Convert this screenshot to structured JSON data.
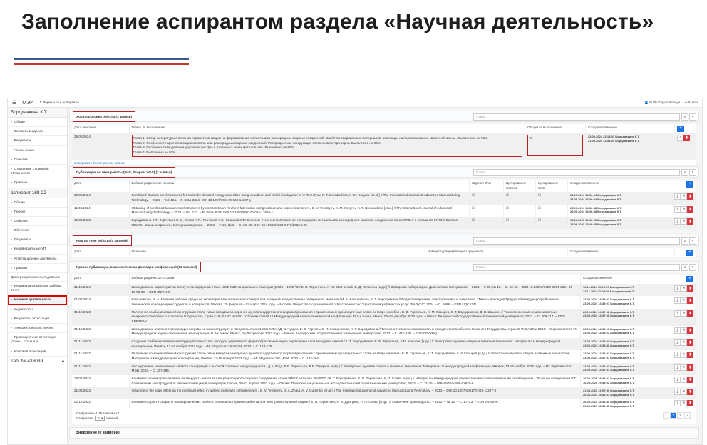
{
  "slide": {
    "title": "Заполнение аспирантом раздела «Научная деятельность»"
  },
  "topbar": {
    "brand": "МЭИ",
    "back": "Вернуться к Аспиранты",
    "user": "PUBLIC\\yasolkovaye",
    "logout": "Выйти"
  },
  "sidebar": {
    "person": "Бородавкина К.Т.",
    "person_items": [
      "Общие",
      "Контакты и адреса",
      "Документы",
      "Члены семьи",
      "События",
      "Отношение к воинской обязанности",
      "Приказы"
    ],
    "group": "аспирант 168-22",
    "group_items": [
      "Общие",
      "Прочие",
      "События",
      "Обучение",
      "Документы",
      "Индивидуальные УП",
      "Аттестационные документы",
      "Приказы"
    ],
    "section_label": "Диссертационное исследование",
    "research_items": [
      "Индивидуальный план работы, отчет",
      "Научная деятельность",
      "Индикаторы",
      "Результаты аттестаций",
      "Текущий контроль (весна)",
      "Промежуточная аттестация (осень), отзыв н.р.",
      "Итоговая аттестация"
    ],
    "tab_select": "Таб. № 436039"
  },
  "search_placeholder": "Поиск...",
  "progress": {
    "title": "Ход подготовки работы (3 записи)",
    "headers": [
      "Дата внесения",
      "Главы, % выполнения",
      "Общий % выполнения",
      "Создано/Изменено"
    ],
    "row": {
      "date": "25.09.2024",
      "chapters": [
        "Глава 1. Обзор литературы о влиянии параметров сварки на формирование металла шва разнородных сварных соединений. Свойства свариваемых материалов, влияющих на перемешивание сварочной ванны.. Выполнено на 95%.",
        "Глава 2. Особенности кристаллизации металла шва разнородных сварных соединений. Распределение легирующих элементов внутри зерна. Выполнено на 90%.",
        "Глава 3. Особенности выделения упрочняющих фаз в различных зонах металла шва. Выполнено на 80%.",
        "Глава 4. Выполнено на 50%."
      ],
      "total": "78",
      "meta": [
        "25.09.2024 23:14:01 Бородавкина К.Т.",
        "21.03.2025 13:33:25 Бородавкина К.Т."
      ]
    },
    "show_earlier": "Отобразить более ранние записи"
  },
  "publications": {
    "title": "Публикации по теме работы (ВАК, Scopus, WoS) (3 записи)",
    "headers": [
      "Дата",
      "Библиографическая ссылка",
      "Журнал ВАК",
      "Цитирование Scopus",
      "Цитирование WoS",
      "Создано/Изменено"
    ],
    "rows": [
      {
        "date": "30.08.2024",
        "ref": "Combined titanium-steel structures formation by directed energy deposition using vanadium and nickel interlayers / E. V. Terentyev, K. T. Borodavkina, K. M. Kozyrev [et al.] // The International Journal of Advanced Manufacturing Technology. – 2024. – Vol. 134. – P. 3311-3324. DOI 10.1007/s00170-024-14307-y",
        "vak": false,
        "scopus": true,
        "wos": false,
        "meta": [
          "23.09.2024 14:36:04 Бородавкина К.Т.",
          "23.09.2024 14:36:04 Бородавкина К.Т."
        ]
      },
      {
        "date": "11.04.2024",
        "ref": "Obtaining of combined titanium-steel structures by electron beam freeform fabrication using niobium and copper interlayers / E. V. Terentyev, K. M. Kozyrev, K. T. Borodavkina [et al.] // The International Journal of Advanced Manufacturing Technology. – 2024. – Vol. 132. – P. 3519-3533. DOI 10.1007/s00170-024-13558-1",
        "vak": false,
        "scopus": true,
        "wos": false,
        "meta": [
          "23.09.2024 14:36:38 Бородавкина К.Т.",
          "23.09.2024 14:36:38 Бородавкина К.Т."
        ]
      },
      {
        "date": "15.06.2023",
        "ref": "Бородавкина К.Т., Терентьев Е.В., Слива А.П., Гончаров А.Л., Козырев Х.М. Влияние степени проплавления на твердость металла шва разнородного сварного соединения стали ЭП817 и сплава 38НХТЮ // Вестник ПНИПУ. Машиностроение, Материаловедение. – 2023. – Т. 25, № 2. – С. 18–25. DOI: 10.15593/2224-9877/2023.2.02",
        "vak": true,
        "scopus": false,
        "wos": false,
        "meta": [
          "15.06.2023 12:40:25 Бородавкина К.Т.",
          "15.06.2023 12:40:25 Бородавкина К.Т."
        ]
      }
    ]
  },
  "rid": {
    "title": "РИД по теме работы (0 записей)",
    "headers": [
      "Дата",
      "Название",
      "Номер подтверждающего документа",
      "Создано/Изменено"
    ]
  },
  "other": {
    "title": "Прочие публикации, включая тезисы докладов конференций (11 записей)",
    "headers": [
      "Дата",
      "Библиографическая ссылка",
      "Создано/Изменено"
    ],
    "rows": [
      {
        "date": "31.10.2024",
        "ref": "Исследование характеристик ползучести корпусной стали 15Х2НМФА в диапазоне температур 500 – 1200 °С / Е. В. Терентьев, А. Ю. Марченков, В. Д. Лопатина [и др.] // Заводская лаборатория. Диагностика материалов. – 2024. – Т. 90, № 10. – С. 56-66. – DOI 10.26896/1028-6861-2024-90-10-56-66. – EDN ZNPKSR.",
        "meta": [
          "12.11.2024 11:29:59 Бородавкина К.Т.",
          "12.11.2024 11:29:59 Бородавкина К.Т."
        ]
      },
      {
        "date": "01.02.2024",
        "ref": "Клюшникова, И. А. Влияние рабочей среды на характеристики оптического спектра при лазерной воздействии на поверхность металла / И. А. Клюшникова, К. Т. Бородавкина // Радиоэлектроника, электротехника и энергетика : Тезисы докладов Тридцатой международной научно-технической конференции студентов и аспирантов, Москва, 29 февраля – 02 марта 2024 года. – Москва: Общество с ограниченной ответственностью \"Центр полиграфических услуг \"РАДУГА\", 2024. – С. 1089. – EDN UQCYSN.",
        "meta": [
          "23.09.2024 14:39:01 Бородавкина К.Т.",
          "23.09.2024 14:39:01 Бородавкина К.Т."
        ]
      },
      {
        "date": "01.12.2023",
        "ref": "Получение комбинированной конструкции сталь-титан методом электронно-лучевого аддитивного формообразования с применением промежуточных слоев из меди и ниобия / Е. В. Терентьев, Х. М. Козырев, К. Т. Бородавкина, Д. В. Шишкин // Технологическая независимость и конкурентоспособность Союзного Государства, стран СНГ, ЕАЭС и ШОС : Сборник статей VI Международной научно-технической конференции. В 3-х томах, Минск, 06–08 декабря 2023 года. – Минск: Белорусский государственный технический университет, 2023. – С. 209-214. – EDN SDRTWW.",
        "meta": [
          "23.09.2024 14:37:08 Бородавкина К.Т.",
          "23.09.2024 14:37:08 Бородавкина К.Т."
        ]
      },
      {
        "date": "01.12.2023",
        "ref": "Исследование влияния температуры нагрева на микроструктуру и твердость стали 15Х2НМФА / Д. В. Чугрин, Е. В. Терентьев, И. Клюшникова, К. Т. Бородавкина // Технологическая независимость и конкурентоспособность Союзного Государства, стран СНГ, ЕАЭС и ШОС : Сборник статей VI Международной научно-технической конференции. В 3-х томах, Минск, 06–08 декабря 2023 года. – Минск: Белорусский государственный технический университет, 2023. – С. 441-445. – EDN CFYYHQ.",
        "meta": [
          "23.09.2024 14:38:22 Бородавкина К.Т.",
          "23.09.2024 14:38:22 Бородавкина К.Т."
        ]
      },
      {
        "date": "01.11.2023",
        "ref": "Создание комбинированных конструкций титан-сталь методом аддитивного формообразования через переходные слои ванадия и никеля / К. Т. Бородавкина, Е. В. Терентьев, Х.М. Козырев [и др.] // Электронно-лучевая сварка и смежные технологии: Материалы V международной конференции, Ижевск, 13-16 ноября 2023 года. – М.: Издательство МЭИ, 2023. – С. 163-176.",
        "meta": [
          "23.09.2024 14:38:48 Бородавкина К.Т.",
          "23.09.2024 14:38:48 Бородавкина К.Т."
        ]
      },
      {
        "date": "01.11.2023",
        "ref": "Получение комбинированной конструкции сталь-титан методом электронно-лучевого аддитивного формообразования с применением промежуточных слоев из меди и ниобия / Е. В. Терентьев, К. Т. Бородавкина, Х.М. Козырев [и др.] // Электронно-лучевая сварка и смежные технологии: Материалы V международной конференции, Ижевск, 13-16 ноября 2023 года. – М.: Издательство МЭИ, 2023. – С. 192-204.",
        "meta": [
          "23.09.2024 14:37:57 Бородавкина К.Т.",
          "23.09.2024 14:37:57 Бородавкина К.Т."
        ]
      },
      {
        "date": "01.11.2023",
        "ref": "Исследование механических свойств конструкций с высокой степенью неоднородности / Д.А. Югут, Е.В. Терентьев, В.В. Пашуков [и др.] // Электронно-лучевая сварка и смежные технологии: Материалы V международной конференции, Ижевск, 13-16 ноября 2023 года. – М.: Издательство МЭИ, 2023. – С. 267-284.",
        "meta": [
          "23.09.2024 14:37:31 Бородавкина К.Т.",
          "23.09.2024 14:37:31 Бородавкина К.Т."
        ]
      },
      {
        "date": "13.06.2023",
        "ref": "Влияние степени проплавления на твердость металла шва разнородного сварного соединения стали ЭП817 и сплава 38НХТЮ / К. Т. Бородавкина, Е. В. Терентьев, А. П. Слива [и др.] // Материалы международной научно-технической конференции, посвященной 135-летию изобретения Н.Г. Славяновым электродуговой сварки плавящимся электродом, Пермь, 20-21 апреля 2023 года. – Пермь: Пермский национальный исследовательский политехнический университет, 2023. – С. 31-35. – ISBN 978-5-398-02920-8",
        "meta": [
          "16.03.2025 15:43:52 Бородавкина К.Т.",
          "16.03.2025 15:43:52 Бородавкина К.Т."
        ]
      },
      {
        "date": "21.03.2023",
        "ref": "Influence of the scale effect on the constraint effect in welded joints with soft interlayers / E. V. Terentyev, D. A. Zhgut, A. V. Gudenko [et al.] // The International Journal of Advanced Manufacturing Technology. – 2023. – DOI 10.1007/s00170-023-11287-3",
        "meta": [
          "21.03.2023 12:07:59 Бородавкина К.Т.",
          "26.03.2023 18:31:31 Бородавкина К.Т."
        ]
      },
      {
        "date": "01.12.2022",
        "ref": "Влияние скорости сварки и теплофизических свойств сплавов на термический КПД при электронно-лучевой сварке / Е. В. Терентьев, Н. К. Драгунов, А. П. Слива [и др.] // Сварочное производство. – 2022. – № 12. – С. 17–23. – EDN NVSJNK.",
        "meta": [
          "26.03.2023 18:31:40 Бородавкина К.Т.",
          "26.03.2023 18:31:40 Бородавкина К.Т."
        ]
      }
    ],
    "shown": "Отображены 1-10 записи из 11",
    "per_page_label": "Отображать",
    "per_page": "10",
    "per_page_suffix": "записей",
    "pages": [
      "‹",
      "1",
      "2",
      "›"
    ]
  },
  "implementation": {
    "title": "Внедрение (0 записей)"
  },
  "colors": {
    "primary": "#1a73e8",
    "danger": "#d9363e",
    "highlight": "#e00000",
    "title_line_blue": "#3b5a8c",
    "title_line_red": "#c0392b"
  }
}
